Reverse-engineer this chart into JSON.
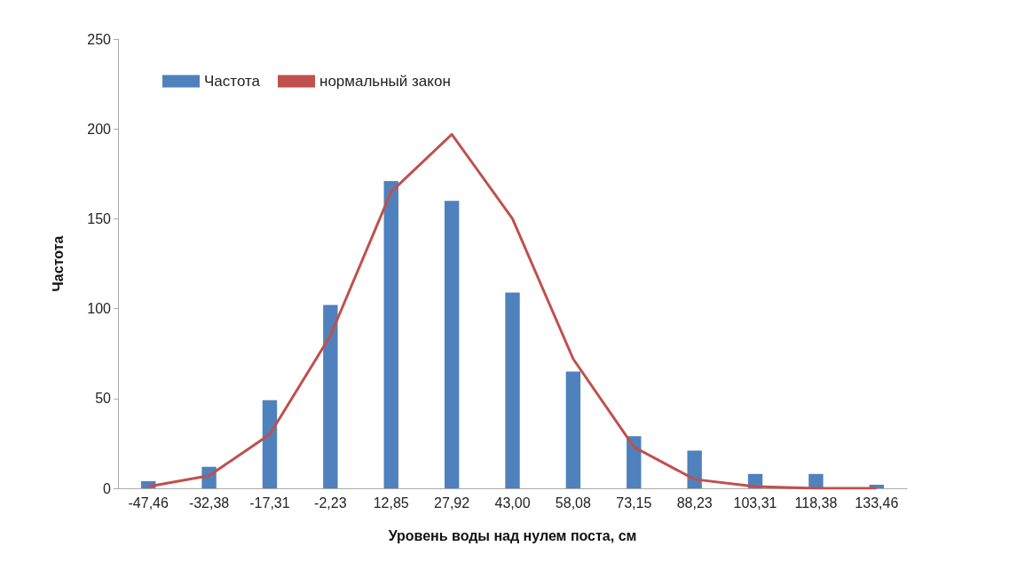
{
  "chart_data": {
    "type": "bar",
    "xlabel": "Уровень воды над нулем поста, см",
    "ylabel": "Частота",
    "categories": [
      "-47,46",
      "-32,38",
      "-17,31",
      "-2,23",
      "12,85",
      "27,92",
      "43,00",
      "58,08",
      "73,15",
      "88,23",
      "103,31",
      "118,38",
      "133,46"
    ],
    "series": [
      {
        "name": "Частота",
        "color": "#4f81bd",
        "values": [
          4,
          12,
          49,
          102,
          171,
          160,
          109,
          65,
          29,
          21,
          8,
          8,
          2
        ]
      },
      {
        "name": "нормальный закон",
        "type": "line",
        "color": "#c0504d",
        "values": [
          1,
          7,
          30,
          85,
          165,
          197,
          150,
          72,
          23,
          5,
          1,
          0,
          0
        ]
      }
    ],
    "ylim": [
      0,
      250
    ],
    "yticks": [
      0,
      50,
      100,
      150,
      200,
      250
    ],
    "grid": false,
    "legend": "top left",
    "marker": "none"
  }
}
